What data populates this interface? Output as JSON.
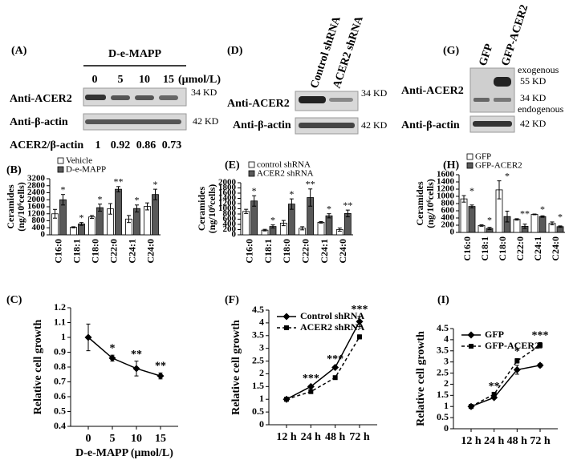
{
  "blots": {
    "A": {
      "label": "(A)",
      "treatment": "D-e-MAPP",
      "lanes": [
        "0",
        "5",
        "10",
        "15"
      ],
      "unit": "(μmol/L)",
      "rows": [
        {
          "name": "Anti-ACER2",
          "size": "34 KD"
        },
        {
          "name": "Anti-β-actin",
          "size": "42 KD"
        }
      ],
      "ratio_label": "ACER2/β-actin",
      "ratios": [
        1,
        0.92,
        0.86,
        0.73
      ]
    },
    "D": {
      "label": "(D)",
      "lanes": [
        "Control shRNA",
        "ACER2 shRNA"
      ],
      "rows": [
        {
          "name": "Anti-ACER2",
          "size": "34 KD"
        },
        {
          "name": "Anti-β-actin",
          "size": "42 KD"
        }
      ]
    },
    "G": {
      "label": "(G)",
      "lanes": [
        "GFP",
        "GFP-ACER2"
      ],
      "rows": [
        {
          "name": "Anti-ACER2",
          "sizes": [
            "exogenous",
            "55 KD",
            "34 KD",
            "endogenous"
          ]
        },
        {
          "name": "Anti-β-actin",
          "size": "42 KD"
        }
      ]
    }
  },
  "chart_data": [
    {
      "type": "bar",
      "label": "(B)",
      "ylabel": [
        "Ceramides",
        "(ng/10⁶cells)"
      ],
      "categories": [
        "C16:0",
        "C18:1",
        "C18:0",
        "C22:0",
        "C24:1",
        "C24:0"
      ],
      "series": [
        {
          "name": "Vehicle",
          "color": "#ffffff",
          "values": [
            1200,
            430,
            1020,
            1480,
            900,
            1620
          ],
          "errors": [
            250,
            30,
            80,
            300,
            200,
            200
          ]
        },
        {
          "name": "D-e-MAPP",
          "color": "#595959",
          "values": [
            2000,
            620,
            1550,
            2600,
            1500,
            2300
          ],
          "errors": [
            300,
            80,
            200,
            150,
            200,
            300
          ]
        }
      ],
      "annotations": [
        "*",
        "*",
        "*",
        "**",
        "*",
        "*"
      ],
      "ylim": [
        0,
        3200
      ],
      "yticks": [
        0,
        400,
        800,
        1200,
        1600,
        2000,
        2400,
        2800,
        3200
      ],
      "legend": "upper left"
    },
    {
      "type": "bar",
      "label": "(E)",
      "ylabel": [
        "Ceramides",
        "(ng/10⁶cells)"
      ],
      "categories": [
        "C16:0",
        "C18:1",
        "C18:0",
        "C22:0",
        "C24:1",
        "C24:0"
      ],
      "series": [
        {
          "name": "control shRNA",
          "color": "#ffffff",
          "values": [
            900,
            180,
            450,
            250,
            480,
            200
          ],
          "errors": [
            80,
            30,
            100,
            60,
            30,
            60
          ]
        },
        {
          "name": "ACER2 shRNA",
          "color": "#595959",
          "values": [
            1300,
            320,
            1180,
            1430,
            730,
            820
          ],
          "errors": [
            200,
            60,
            200,
            330,
            80,
            130
          ]
        }
      ],
      "annotations": [
        "*",
        "*",
        "*",
        "**",
        "*",
        "**"
      ],
      "ylim": [
        0,
        2000
      ],
      "yticks": [
        0,
        200,
        400,
        600,
        800,
        1000,
        1200,
        1400,
        1600,
        1800,
        2000
      ],
      "legend": "upper left"
    },
    {
      "type": "bar",
      "label": "(H)",
      "ylabel": [
        "Ceramides",
        "(ng/10⁶cells)"
      ],
      "categories": [
        "C16:0",
        "C18:1",
        "C18:0",
        "C22:0",
        "C24:1",
        "C24:0"
      ],
      "series": [
        {
          "name": "GFP",
          "color": "#ffffff",
          "values": [
            930,
            190,
            1180,
            360,
            500,
            250
          ],
          "errors": [
            90,
            20,
            250,
            20,
            10,
            40
          ]
        },
        {
          "name": "GFP-ACER2",
          "color": "#595959",
          "values": [
            720,
            110,
            440,
            170,
            440,
            160
          ],
          "errors": [
            40,
            30,
            150,
            60,
            20,
            20
          ]
        }
      ],
      "annotations": [
        "*",
        "*",
        "*",
        "**",
        "*",
        "*"
      ],
      "ylim": [
        0,
        1600
      ],
      "yticks": [
        0,
        200,
        400,
        600,
        800,
        1000,
        1200,
        1400,
        1600
      ],
      "legend": "upper left"
    },
    {
      "type": "line",
      "label": "(C)",
      "ylabel": "Relative cell growth",
      "xlabel": "D-e-MAPP (μmol/L)",
      "categories": [
        "0",
        "5",
        "10",
        "15"
      ],
      "series": [
        {
          "color": "#000000",
          "marker": "diamond",
          "linestyle": "solid",
          "values": [
            1.0,
            0.86,
            0.79,
            0.74
          ],
          "errors": [
            0.09,
            0.02,
            0.05,
            0.02
          ]
        }
      ],
      "annotations": [
        null,
        "*",
        "**",
        "**"
      ],
      "ylim": [
        0.4,
        1.2
      ],
      "yticks": [
        0.4,
        0.5,
        0.6,
        0.7,
        0.8,
        0.9,
        1,
        1.1,
        1.2
      ]
    },
    {
      "type": "line",
      "label": "(F)",
      "ylabel": "Relative cell growth",
      "categories": [
        "12 h",
        "24 h",
        "48 h",
        "72 h"
      ],
      "series": [
        {
          "name": "Control shRNA",
          "color": "#000000",
          "marker": "diamond",
          "linestyle": "solid",
          "values": [
            1,
            1.5,
            2.25,
            4.05
          ],
          "errors": [
            0.03,
            0.05,
            0.05,
            0.2
          ]
        },
        {
          "name": "ACER2 shRNA",
          "color": "#000000",
          "marker": "square",
          "linestyle": "dashed",
          "values": [
            1,
            1.3,
            1.85,
            3.45
          ],
          "errors": [
            0.03,
            0.04,
            0.05,
            0.08
          ]
        }
      ],
      "annotations": [
        null,
        "***",
        "***",
        "***"
      ],
      "ylim": [
        0,
        4.5
      ],
      "yticks": [
        0,
        0.5,
        1,
        1.5,
        2,
        2.5,
        3,
        3.5,
        4,
        4.5
      ],
      "legend": "upper left"
    },
    {
      "type": "line",
      "label": "(I)",
      "ylabel": "Relative cell growth",
      "categories": [
        "12 h",
        "24 h",
        "48 h",
        "72 h"
      ],
      "series": [
        {
          "name": "GFP",
          "color": "#000000",
          "marker": "diamond",
          "linestyle": "solid",
          "values": [
            1,
            1.4,
            2.65,
            2.85
          ],
          "errors": [
            0.03,
            0.05,
            0.2,
            0.08
          ]
        },
        {
          "name": "GFP-ACER2",
          "color": "#000000",
          "marker": "square",
          "linestyle": "dashed",
          "values": [
            1,
            1.55,
            3.05,
            3.75
          ],
          "errors": [
            0.03,
            0.05,
            0.1,
            0.12
          ]
        }
      ],
      "annotations": [
        null,
        "**",
        "*",
        "***"
      ],
      "ylim": [
        0,
        4.5
      ],
      "yticks": [
        0,
        0.5,
        1,
        1.5,
        2,
        2.5,
        3,
        3.5,
        4,
        4.5
      ],
      "legend": "upper left"
    }
  ]
}
